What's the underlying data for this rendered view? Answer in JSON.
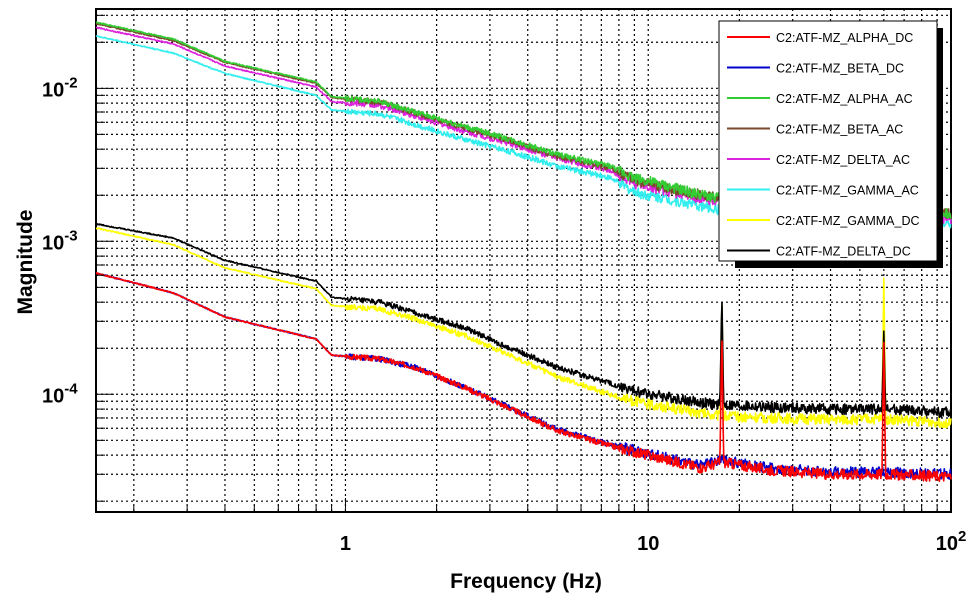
{
  "chart_data": {
    "type": "line",
    "xlabel": "Frequency (Hz)",
    "ylabel": "Magnitude",
    "x_scale": "log",
    "y_scale": "log",
    "xlim": [
      0.15,
      100
    ],
    "ylim": [
      1.7e-05,
      0.033
    ],
    "grid": true,
    "legend_position": "top-right",
    "x_ticks": [
      {
        "value": 1,
        "label": "1"
      },
      {
        "value": 10,
        "label": "10"
      },
      {
        "value": 100,
        "label": "10",
        "sup": "2"
      }
    ],
    "y_ticks": [
      {
        "value": 0.0001,
        "label": "10",
        "sup": "-4"
      },
      {
        "value": 0.001,
        "label": "10",
        "sup": "-3"
      },
      {
        "value": 0.01,
        "label": "10",
        "sup": "-2"
      }
    ],
    "x": [
      0.15,
      0.27,
      0.4,
      0.8,
      0.9,
      1.3,
      1.7,
      2.5,
      3.3,
      5.0,
      7.5,
      9.0,
      15,
      17.5,
      25,
      40,
      60,
      100
    ],
    "series": [
      {
        "name": "C2:ATF-MZ_ALPHA_DC",
        "color": "#ff0000",
        "values": [
          0.00062,
          0.00046,
          0.00032,
          0.00023,
          0.00018,
          0.00017,
          0.00015,
          0.00011,
          8.5e-05,
          5.8e-05,
          4.6e-05,
          4.2e-05,
          3.3e-05,
          3.6e-05,
          3.2e-05,
          3e-05,
          3e-05,
          2.9e-05
        ],
        "peaks": [
          {
            "x": 17.5,
            "y": 0.00027
          },
          {
            "x": 60,
            "y": 0.00022
          }
        ]
      },
      {
        "name": "C2:ATF-MZ_BETA_DC",
        "color": "#0000cc",
        "values": [
          0.00062,
          0.00046,
          0.00032,
          0.00023,
          0.00018,
          0.00017,
          0.00015,
          0.00011,
          8.6e-05,
          5.9e-05,
          4.7e-05,
          4.3e-05,
          3.4e-05,
          3.7e-05,
          3.3e-05,
          3.1e-05,
          3.1e-05,
          3e-05
        ],
        "peaks": []
      },
      {
        "name": "C2:ATF-MZ_ALPHA_AC",
        "color": "#33cc33",
        "values": [
          0.027,
          0.021,
          0.015,
          0.011,
          0.0088,
          0.0082,
          0.007,
          0.0056,
          0.0048,
          0.0037,
          0.0031,
          0.0026,
          0.002,
          0.0019,
          0.0017,
          0.0016,
          0.0016,
          0.0015
        ],
        "peaks": []
      },
      {
        "name": "C2:ATF-MZ_BETA_AC",
        "color": "#7a4a2a",
        "values": [
          0.0265,
          0.0205,
          0.0148,
          0.0108,
          0.0087,
          0.0081,
          0.0069,
          0.0055,
          0.0047,
          0.0036,
          0.003,
          0.0025,
          0.002,
          0.0019,
          0.0017,
          0.0016,
          0.0016,
          0.0015
        ],
        "peaks": []
      },
      {
        "name": "C2:ATF-MZ_DELTA_AC",
        "color": "#dd22dd",
        "values": [
          0.025,
          0.0195,
          0.014,
          0.0102,
          0.0082,
          0.0077,
          0.0066,
          0.0052,
          0.0045,
          0.0035,
          0.0029,
          0.0024,
          0.0019,
          0.0018,
          0.0016,
          0.0015,
          0.0015,
          0.0014
        ],
        "peaks": []
      },
      {
        "name": "C2:ATF-MZ_GAMMA_AC",
        "color": "#33eeee",
        "values": [
          0.022,
          0.017,
          0.0125,
          0.009,
          0.0072,
          0.0068,
          0.0058,
          0.0046,
          0.004,
          0.0031,
          0.0026,
          0.0021,
          0.0017,
          0.0016,
          0.0015,
          0.0014,
          0.0014,
          0.0013
        ],
        "peaks": []
      },
      {
        "name": "C2:ATF-MZ_GAMMA_DC",
        "color": "#ffff00",
        "values": [
          0.00122,
          0.00095,
          0.00067,
          0.00049,
          0.00038,
          0.00036,
          0.00031,
          0.00024,
          0.00019,
          0.00013,
          0.0001,
          9e-05,
          7.5e-05,
          7.2e-05,
          7e-05,
          6.8e-05,
          6.9e-05,
          6.5e-05
        ],
        "peaks": [
          {
            "x": 17.5,
            "y": 0.00045
          },
          {
            "x": 60,
            "y": 0.00058
          }
        ]
      },
      {
        "name": "C2:ATF-MZ_DELTA_DC",
        "color": "#000000",
        "values": [
          0.0013,
          0.00105,
          0.00075,
          0.00055,
          0.00043,
          0.0004,
          0.00034,
          0.00027,
          0.00021,
          0.00015,
          0.000118,
          0.000105,
          8.8e-05,
          8.5e-05,
          8.2e-05,
          8e-05,
          8e-05,
          7.6e-05
        ],
        "peaks": [
          {
            "x": 17.5,
            "y": 0.00047
          },
          {
            "x": 60,
            "y": 0.00026
          }
        ]
      }
    ]
  }
}
